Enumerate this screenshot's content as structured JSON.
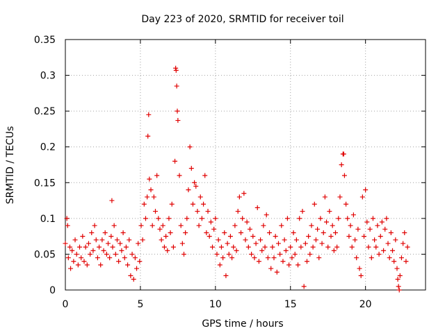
{
  "chart_data": {
    "type": "scatter",
    "title": "Day 223 of 2020, SRMTID for receiver toil",
    "xlabel": "GPS time / hours",
    "ylabel": "SRMTID / TECUs",
    "xlim": [
      0,
      24
    ],
    "ylim": [
      0,
      0.35
    ],
    "x_ticks": [
      0,
      5,
      10,
      15,
      20
    ],
    "x_tick_labels": [
      "0",
      "5",
      "10",
      "15",
      "20"
    ],
    "y_ticks": [
      0,
      0.05,
      0.1,
      0.15,
      0.2,
      0.25,
      0.3,
      0.35
    ],
    "y_tick_labels": [
      "0",
      "0.05",
      "0.1",
      "0.15",
      "0.2",
      "0.25",
      "0.3",
      "0.35"
    ],
    "grid": true,
    "marker": "+",
    "color": "#e00000",
    "series": [
      {
        "name": "SRMTID",
        "points": [
          [
            0.0,
            0.065
          ],
          [
            0.1,
            0.1
          ],
          [
            0.15,
            0.09
          ],
          [
            0.2,
            0.045
          ],
          [
            0.3,
            0.06
          ],
          [
            0.35,
            0.03
          ],
          [
            0.45,
            0.055
          ],
          [
            0.55,
            0.04
          ],
          [
            0.65,
            0.07
          ],
          [
            0.75,
            0.05
          ],
          [
            0.85,
            0.035
          ],
          [
            0.95,
            0.06
          ],
          [
            1.05,
            0.045
          ],
          [
            1.15,
            0.075
          ],
          [
            1.25,
            0.04
          ],
          [
            1.35,
            0.06
          ],
          [
            1.45,
            0.035
          ],
          [
            1.55,
            0.065
          ],
          [
            1.65,
            0.05
          ],
          [
            1.75,
            0.08
          ],
          [
            1.85,
            0.055
          ],
          [
            1.95,
            0.09
          ],
          [
            2.05,
            0.07
          ],
          [
            2.15,
            0.045
          ],
          [
            2.25,
            0.06
          ],
          [
            2.35,
            0.035
          ],
          [
            2.45,
            0.07
          ],
          [
            2.55,
            0.055
          ],
          [
            2.65,
            0.08
          ],
          [
            2.75,
            0.05
          ],
          [
            2.85,
            0.065
          ],
          [
            2.95,
            0.045
          ],
          [
            3.05,
            0.075
          ],
          [
            3.1,
            0.125
          ],
          [
            3.15,
            0.06
          ],
          [
            3.25,
            0.09
          ],
          [
            3.35,
            0.05
          ],
          [
            3.45,
            0.07
          ],
          [
            3.55,
            0.04
          ],
          [
            3.65,
            0.065
          ],
          [
            3.75,
            0.055
          ],
          [
            3.85,
            0.08
          ],
          [
            3.95,
            0.045
          ],
          [
            4.05,
            0.06
          ],
          [
            4.15,
            0.035
          ],
          [
            4.25,
            0.07
          ],
          [
            4.35,
            0.02
          ],
          [
            4.45,
            0.05
          ],
          [
            4.55,
            0.015
          ],
          [
            4.65,
            0.045
          ],
          [
            4.75,
            0.03
          ],
          [
            4.85,
            0.065
          ],
          [
            4.95,
            0.04
          ],
          [
            5.05,
            0.09
          ],
          [
            5.15,
            0.07
          ],
          [
            5.25,
            0.12
          ],
          [
            5.35,
            0.1
          ],
          [
            5.45,
            0.13
          ],
          [
            5.5,
            0.215
          ],
          [
            5.55,
            0.245
          ],
          [
            5.6,
            0.155
          ],
          [
            5.7,
            0.14
          ],
          [
            5.8,
            0.09
          ],
          [
            5.9,
            0.13
          ],
          [
            6.0,
            0.11
          ],
          [
            6.1,
            0.16
          ],
          [
            6.2,
            0.1
          ],
          [
            6.3,
            0.085
          ],
          [
            6.4,
            0.07
          ],
          [
            6.5,
            0.09
          ],
          [
            6.6,
            0.06
          ],
          [
            6.7,
            0.075
          ],
          [
            6.8,
            0.055
          ],
          [
            6.9,
            0.1
          ],
          [
            7.0,
            0.08
          ],
          [
            7.1,
            0.12
          ],
          [
            7.2,
            0.06
          ],
          [
            7.3,
            0.18
          ],
          [
            7.35,
            0.31
          ],
          [
            7.38,
            0.307
          ],
          [
            7.42,
            0.285
          ],
          [
            7.46,
            0.25
          ],
          [
            7.5,
            0.237
          ],
          [
            7.6,
            0.16
          ],
          [
            7.7,
            0.09
          ],
          [
            7.8,
            0.065
          ],
          [
            7.9,
            0.05
          ],
          [
            8.0,
            0.08
          ],
          [
            8.1,
            0.1
          ],
          [
            8.2,
            0.14
          ],
          [
            8.3,
            0.2
          ],
          [
            8.4,
            0.17
          ],
          [
            8.5,
            0.12
          ],
          [
            8.6,
            0.15
          ],
          [
            8.7,
            0.145
          ],
          [
            8.8,
            0.11
          ],
          [
            8.9,
            0.09
          ],
          [
            9.0,
            0.13
          ],
          [
            9.1,
            0.1
          ],
          [
            9.2,
            0.12
          ],
          [
            9.3,
            0.16
          ],
          [
            9.4,
            0.08
          ],
          [
            9.5,
            0.11
          ],
          [
            9.6,
            0.075
          ],
          [
            9.7,
            0.095
          ],
          [
            9.8,
            0.06
          ],
          [
            9.9,
            0.085
          ],
          [
            10.0,
            0.1
          ],
          [
            10.1,
            0.05
          ],
          [
            10.2,
            0.07
          ],
          [
            10.3,
            0.035
          ],
          [
            10.4,
            0.06
          ],
          [
            10.5,
            0.045
          ],
          [
            10.6,
            0.08
          ],
          [
            10.7,
            0.02
          ],
          [
            10.8,
            0.065
          ],
          [
            10.9,
            0.05
          ],
          [
            11.0,
            0.075
          ],
          [
            11.1,
            0.045
          ],
          [
            11.2,
            0.06
          ],
          [
            11.3,
            0.09
          ],
          [
            11.4,
            0.055
          ],
          [
            11.5,
            0.11
          ],
          [
            11.6,
            0.13
          ],
          [
            11.7,
            0.08
          ],
          [
            11.8,
            0.1
          ],
          [
            11.9,
            0.135
          ],
          [
            12.0,
            0.07
          ],
          [
            12.1,
            0.095
          ],
          [
            12.2,
            0.06
          ],
          [
            12.3,
            0.085
          ],
          [
            12.4,
            0.05
          ],
          [
            12.5,
            0.075
          ],
          [
            12.6,
            0.045
          ],
          [
            12.7,
            0.065
          ],
          [
            12.8,
            0.115
          ],
          [
            12.9,
            0.04
          ],
          [
            13.0,
            0.07
          ],
          [
            13.1,
            0.055
          ],
          [
            13.2,
            0.09
          ],
          [
            13.3,
            0.06
          ],
          [
            13.4,
            0.105
          ],
          [
            13.5,
            0.045
          ],
          [
            13.6,
            0.08
          ],
          [
            13.7,
            0.03
          ],
          [
            13.8,
            0.06
          ],
          [
            13.9,
            0.045
          ],
          [
            14.0,
            0.075
          ],
          [
            14.1,
            0.025
          ],
          [
            14.2,
            0.065
          ],
          [
            14.3,
            0.05
          ],
          [
            14.4,
            0.09
          ],
          [
            14.5,
            0.04
          ],
          [
            14.6,
            0.07
          ],
          [
            14.7,
            0.055
          ],
          [
            14.8,
            0.1
          ],
          [
            14.9,
            0.035
          ],
          [
            15.0,
            0.06
          ],
          [
            15.1,
            0.045
          ],
          [
            15.2,
            0.08
          ],
          [
            15.3,
            0.05
          ],
          [
            15.4,
            0.07
          ],
          [
            15.5,
            0.035
          ],
          [
            15.6,
            0.1
          ],
          [
            15.7,
            0.06
          ],
          [
            15.8,
            0.11
          ],
          [
            15.9,
            0.005
          ],
          [
            16.0,
            0.065
          ],
          [
            16.1,
            0.04
          ],
          [
            16.2,
            0.075
          ],
          [
            16.3,
            0.05
          ],
          [
            16.4,
            0.09
          ],
          [
            16.5,
            0.06
          ],
          [
            16.6,
            0.12
          ],
          [
            16.7,
            0.07
          ],
          [
            16.8,
            0.085
          ],
          [
            16.9,
            0.045
          ],
          [
            17.0,
            0.1
          ],
          [
            17.1,
            0.065
          ],
          [
            17.2,
            0.08
          ],
          [
            17.3,
            0.13
          ],
          [
            17.4,
            0.095
          ],
          [
            17.5,
            0.06
          ],
          [
            17.6,
            0.11
          ],
          [
            17.7,
            0.075
          ],
          [
            17.8,
            0.09
          ],
          [
            17.9,
            0.055
          ],
          [
            18.0,
            0.08
          ],
          [
            18.1,
            0.06
          ],
          [
            18.2,
            0.1
          ],
          [
            18.3,
            0.13
          ],
          [
            18.4,
            0.175
          ],
          [
            18.5,
            0.19
          ],
          [
            18.55,
            0.19
          ],
          [
            18.6,
            0.16
          ],
          [
            18.7,
            0.12
          ],
          [
            18.8,
            0.1
          ],
          [
            18.9,
            0.075
          ],
          [
            19.0,
            0.09
          ],
          [
            19.1,
            0.06
          ],
          [
            19.2,
            0.105
          ],
          [
            19.3,
            0.07
          ],
          [
            19.4,
            0.045
          ],
          [
            19.5,
            0.085
          ],
          [
            19.6,
            0.03
          ],
          [
            19.7,
            0.02
          ],
          [
            19.8,
            0.13
          ],
          [
            19.9,
            0.075
          ],
          [
            20.0,
            0.14
          ],
          [
            20.1,
            0.095
          ],
          [
            20.2,
            0.06
          ],
          [
            20.3,
            0.085
          ],
          [
            20.4,
            0.045
          ],
          [
            20.5,
            0.1
          ],
          [
            20.6,
            0.07
          ],
          [
            20.7,
            0.06
          ],
          [
            20.8,
            0.09
          ],
          [
            20.9,
            0.05
          ],
          [
            21.0,
            0.075
          ],
          [
            21.1,
            0.095
          ],
          [
            21.2,
            0.055
          ],
          [
            21.3,
            0.085
          ],
          [
            21.4,
            0.1
          ],
          [
            21.5,
            0.065
          ],
          [
            21.6,
            0.045
          ],
          [
            21.7,
            0.08
          ],
          [
            21.8,
            0.055
          ],
          [
            21.9,
            0.04
          ],
          [
            22.0,
            0.07
          ],
          [
            22.1,
            0.03
          ],
          [
            22.15,
            0.015
          ],
          [
            22.2,
            0.005
          ],
          [
            22.25,
            0.0
          ],
          [
            22.3,
            0.02
          ],
          [
            22.4,
            0.045
          ],
          [
            22.5,
            0.065
          ],
          [
            22.6,
            0.08
          ],
          [
            22.7,
            0.04
          ],
          [
            22.8,
            0.06
          ]
        ]
      }
    ]
  }
}
